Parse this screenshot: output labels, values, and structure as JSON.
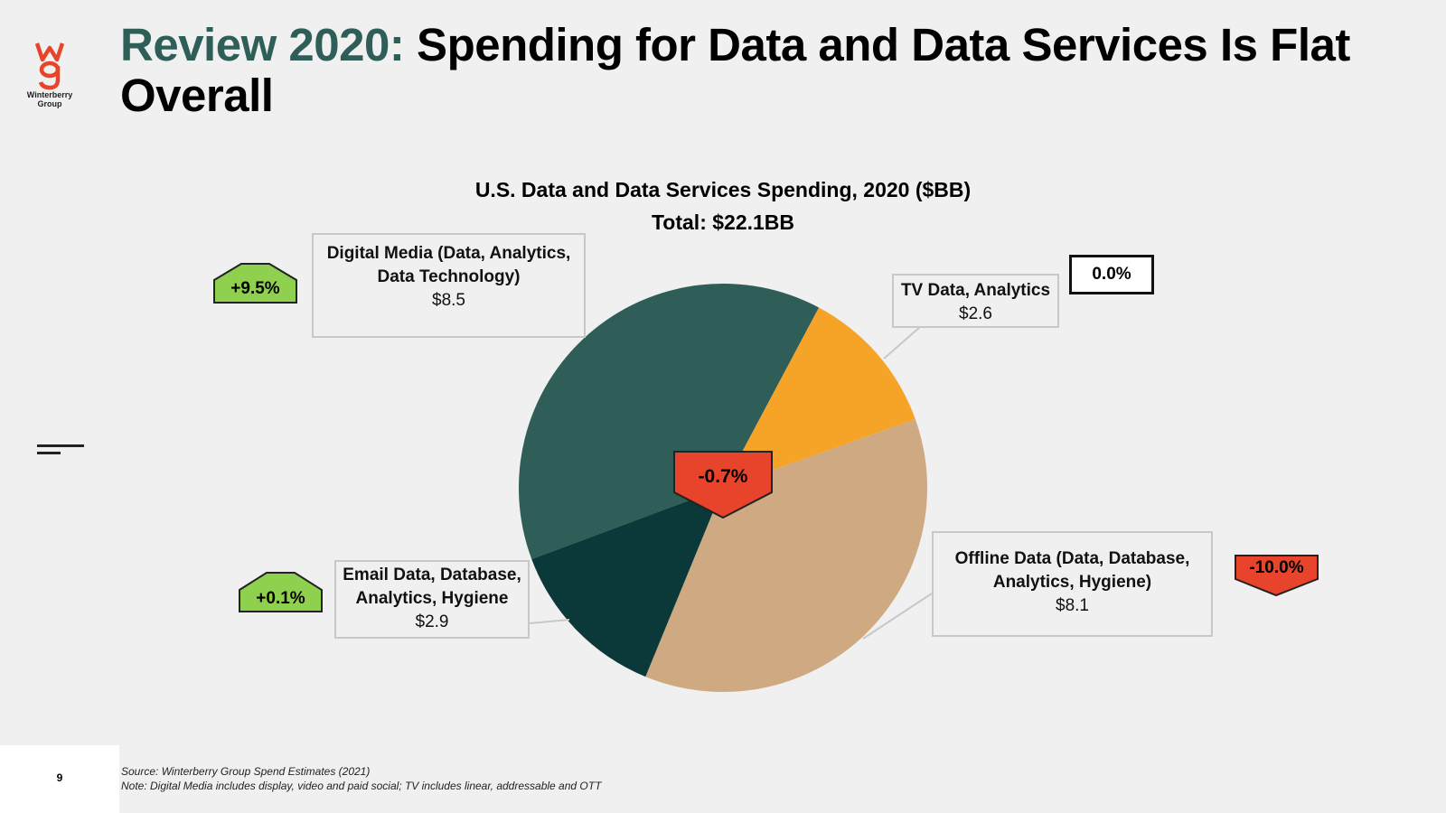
{
  "brand": {
    "logo_text": "Winterberry Group"
  },
  "slide": {
    "title_accent": "Review 2020:",
    "title_rest": "Spending for Data and Data Services Is Flat Overall",
    "page_number": "9",
    "source_note": "Source: Winterberry Group Spend Estimates (2021)",
    "scope_note": "Note: Digital Media includes display, video and paid social; TV includes linear, addressable and OTT"
  },
  "chart_data": {
    "type": "pie",
    "title": "U.S. Data and Data Services Spending, 2020 ($BB)",
    "subtitle": "Total: $22.1BB",
    "total_change": "-0.7%",
    "slices": [
      {
        "label": "Digital Media (Data, Analytics, Data Technology)",
        "label_line1": "Digital Media (Data, Analytics,",
        "label_line2": "Data Technology)",
        "value": 8.5,
        "value_text": "$8.5",
        "change": "+9.5%",
        "color": "#2e5e57"
      },
      {
        "label": "TV Data, Analytics",
        "label_line1": "TV Data, Analytics",
        "label_line2": "",
        "value": 2.6,
        "value_text": "$2.6",
        "change": "0.0%",
        "color": "#f5a428"
      },
      {
        "label": "Offline Data (Data, Database, Analytics, Hygiene)",
        "label_line1": "Offline Data (Data, Database,",
        "label_line2": "Analytics, Hygiene)",
        "value": 8.1,
        "value_text": "$8.1",
        "change": "-10.0%",
        "color": "#cfa981"
      },
      {
        "label": "Email Data, Database, Analytics, Hygiene",
        "label_line1": "Email Data, Database,",
        "label_line2": "Analytics, Hygiene",
        "value": 2.9,
        "value_text": "$2.9",
        "change": "+0.1%",
        "color": "#0b3838"
      }
    ],
    "colors": {
      "up": "#8fd14f",
      "down": "#e8432b",
      "flat": "#ffffff"
    }
  }
}
